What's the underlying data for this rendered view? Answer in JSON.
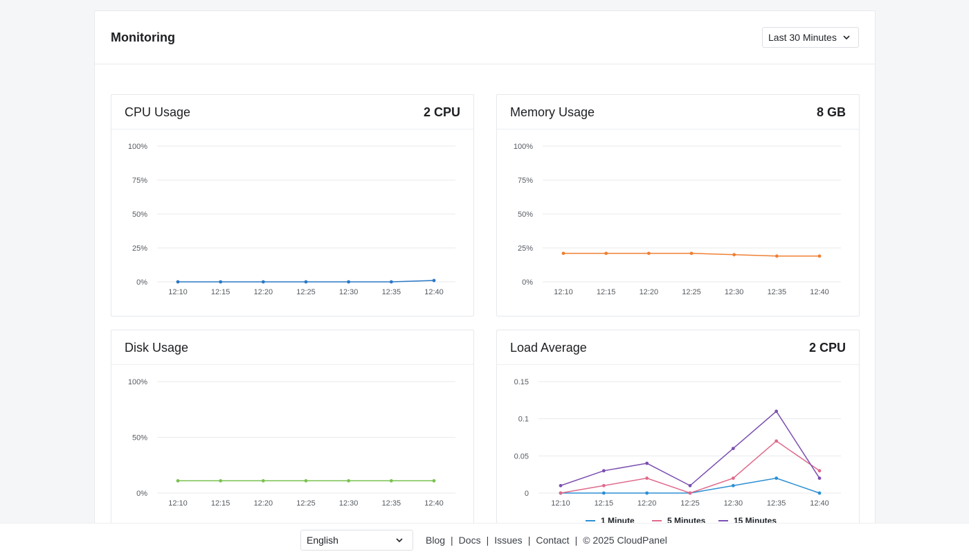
{
  "header": {
    "title": "Monitoring",
    "range": "Last 30 Minutes"
  },
  "footer": {
    "language": "English",
    "links": [
      "Blog",
      "Docs",
      "Issues",
      "Contact"
    ],
    "copyright": "© 2025  CloudPanel"
  },
  "colors": {
    "cpu": "#2b78c5",
    "memory": "#f07f33",
    "disk": "#79c251",
    "load_1": "#2b8fd3",
    "load_5": "#e06a8b",
    "load_15": "#7b4fb0"
  },
  "cards": {
    "cpu": {
      "title": "CPU Usage",
      "meta": "2 CPU"
    },
    "memory": {
      "title": "Memory Usage",
      "meta": "8 GB"
    },
    "disk": {
      "title": "Disk Usage",
      "meta": ""
    },
    "load": {
      "title": "Load Average",
      "meta": "2 CPU"
    }
  },
  "chart_data": [
    {
      "id": "cpu",
      "type": "line",
      "categories": [
        "12:10",
        "12:15",
        "12:20",
        "12:25",
        "12:30",
        "12:35",
        "12:40"
      ],
      "ylim": [
        0,
        100
      ],
      "yticks": [
        0,
        25,
        50,
        75,
        100
      ],
      "ytick_labels": [
        "0%",
        "25%",
        "50%",
        "75%",
        "100%"
      ],
      "series": [
        {
          "name": "CPU",
          "color": "#2b78c5",
          "values": [
            0,
            0,
            0,
            0,
            0,
            0,
            1
          ]
        }
      ]
    },
    {
      "id": "memory",
      "type": "line",
      "categories": [
        "12:10",
        "12:15",
        "12:20",
        "12:25",
        "12:30",
        "12:35",
        "12:40"
      ],
      "ylim": [
        0,
        100
      ],
      "yticks": [
        0,
        25,
        50,
        75,
        100
      ],
      "ytick_labels": [
        "0%",
        "25%",
        "50%",
        "75%",
        "100%"
      ],
      "series": [
        {
          "name": "Memory",
          "color": "#f07f33",
          "values": [
            21,
            21,
            21,
            21,
            20,
            19,
            19
          ]
        }
      ]
    },
    {
      "id": "disk",
      "type": "line",
      "categories": [
        "12:10",
        "12:15",
        "12:20",
        "12:25",
        "12:30",
        "12:35",
        "12:40"
      ],
      "ylim": [
        0,
        100
      ],
      "yticks": [
        0,
        50,
        100
      ],
      "ytick_labels": [
        "0%",
        "50%",
        "100%"
      ],
      "series": [
        {
          "name": "Disk",
          "color": "#79c251",
          "values": [
            11,
            11,
            11,
            11,
            11,
            11,
            11
          ]
        }
      ]
    },
    {
      "id": "load",
      "type": "line",
      "categories": [
        "12:10",
        "12:15",
        "12:20",
        "12:25",
        "12:30",
        "12:35",
        "12:40"
      ],
      "ylim": [
        0,
        0.15
      ],
      "yticks": [
        0,
        0.05,
        0.1,
        0.15
      ],
      "ytick_labels": [
        "0",
        "0.05",
        "0.1",
        "0.15"
      ],
      "series": [
        {
          "name": "1 Minute",
          "color": "#2b8fd3",
          "values": [
            0,
            0,
            0,
            0,
            0.01,
            0.02,
            0
          ]
        },
        {
          "name": "5 Minutes",
          "color": "#e06a8b",
          "values": [
            0,
            0.01,
            0.02,
            0,
            0.02,
            0.07,
            0.03
          ]
        },
        {
          "name": "15 Minutes",
          "color": "#7b4fb0",
          "values": [
            0.01,
            0.03,
            0.04,
            0.01,
            0.06,
            0.11,
            0.02
          ]
        }
      ]
    }
  ]
}
